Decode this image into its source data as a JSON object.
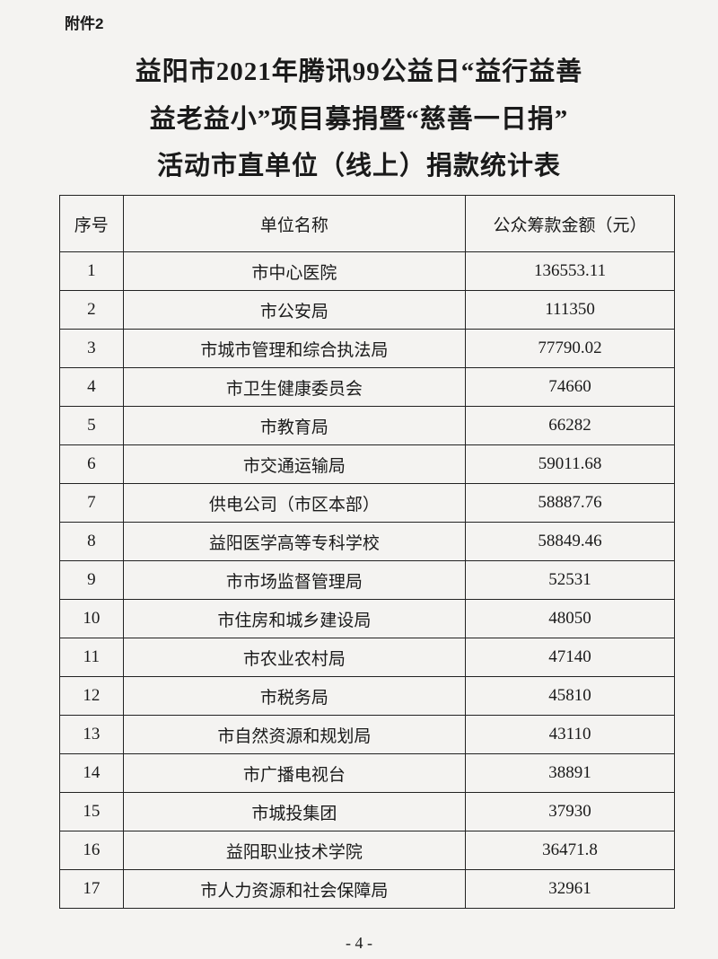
{
  "attachment_label": "附件2",
  "title_lines": [
    "益阳市2021年腾讯99公益日“益行益善",
    "益老益小”项目募捐暨“慈善一日捐”",
    "活动市直单位（线上）捐款统计表"
  ],
  "table": {
    "headers": [
      "序号",
      "单位名称",
      "公众筹款金额（元）"
    ],
    "rows": [
      [
        "1",
        "市中心医院",
        "136553.11"
      ],
      [
        "2",
        "市公安局",
        "111350"
      ],
      [
        "3",
        "市城市管理和综合执法局",
        "77790.02"
      ],
      [
        "4",
        "市卫生健康委员会",
        "74660"
      ],
      [
        "5",
        "市教育局",
        "66282"
      ],
      [
        "6",
        "市交通运输局",
        "59011.68"
      ],
      [
        "7",
        "供电公司（市区本部）",
        "58887.76"
      ],
      [
        "8",
        "益阳医学高等专科学校",
        "58849.46"
      ],
      [
        "9",
        "市市场监督管理局",
        "52531"
      ],
      [
        "10",
        "市住房和城乡建设局",
        "48050"
      ],
      [
        "11",
        "市农业农村局",
        "47140"
      ],
      [
        "12",
        "市税务局",
        "45810"
      ],
      [
        "13",
        "市自然资源和规划局",
        "43110"
      ],
      [
        "14",
        "市广播电视台",
        "38891"
      ],
      [
        "15",
        "市城投集团",
        "37930"
      ],
      [
        "16",
        "益阳职业技术学院",
        "36471.8"
      ],
      [
        "17",
        "市人力资源和社会保障局",
        "32961"
      ]
    ]
  },
  "page_number": "- 4 -"
}
